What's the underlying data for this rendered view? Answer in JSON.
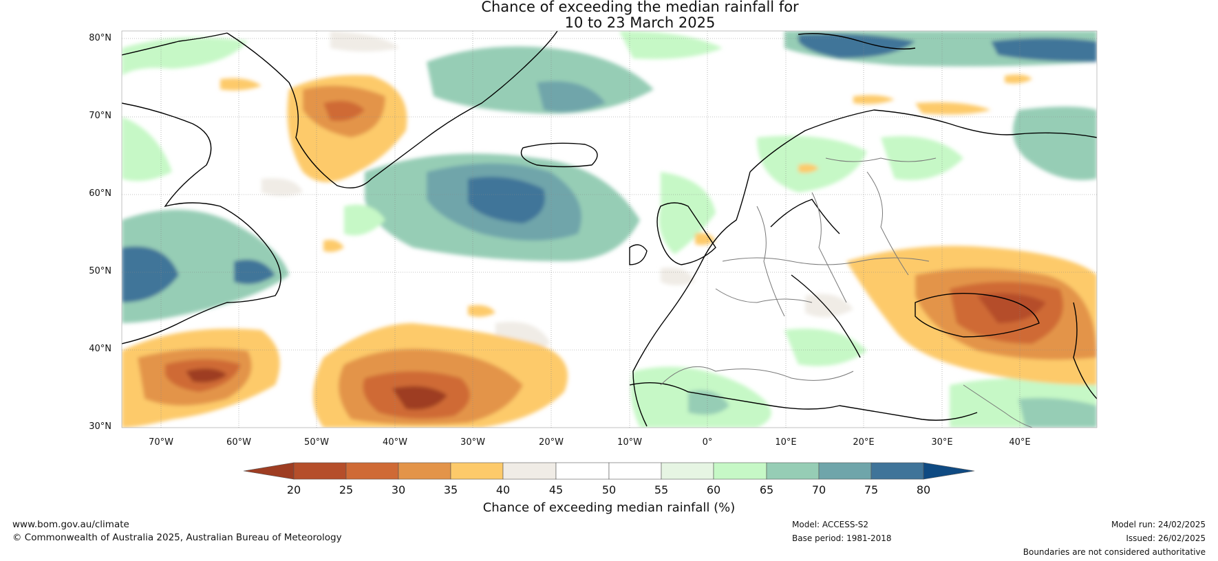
{
  "title_line1": "Chance of exceeding the median rainfall for",
  "title_line2": "10 to 23 March 2025",
  "lat_labels": [
    "80°N",
    "70°N",
    "60°N",
    "50°N",
    "40°N",
    "30°N"
  ],
  "lon_labels": [
    "70°W",
    "60°W",
    "50°W",
    "40°W",
    "30°W",
    "20°W",
    "10°W",
    "0°",
    "10°E",
    "20°E",
    "30°E",
    "40°E"
  ],
  "colorbar": {
    "ticks": [
      "20",
      "25",
      "30",
      "35",
      "40",
      "45",
      "50",
      "55",
      "60",
      "65",
      "70",
      "75",
      "80"
    ],
    "colors": [
      "#9e3d22",
      "#b54e2a",
      "#cf6a35",
      "#e39449",
      "#fdca6a",
      "#f0ece6",
      "#ffffff",
      "#ffffff",
      "#e6f5e3",
      "#c6f8c6",
      "#96cdb5",
      "#6fa5aa",
      "#3f7499",
      "#0f4a82"
    ],
    "label": "Chance of exceeding median rainfall (%)"
  },
  "footer": {
    "website": "www.bom.gov.au/climate",
    "copyright": "© Commonwealth of Australia 2025, Australian Bureau of Meteorology",
    "model": "Model: ACCESS-S2",
    "base_period": "Base period: 1981-2018",
    "model_run": "Model run: 24/02/2025",
    "issued": "Issued: 26/02/2025",
    "disclaimer": "Boundaries are not considered authoritative"
  }
}
